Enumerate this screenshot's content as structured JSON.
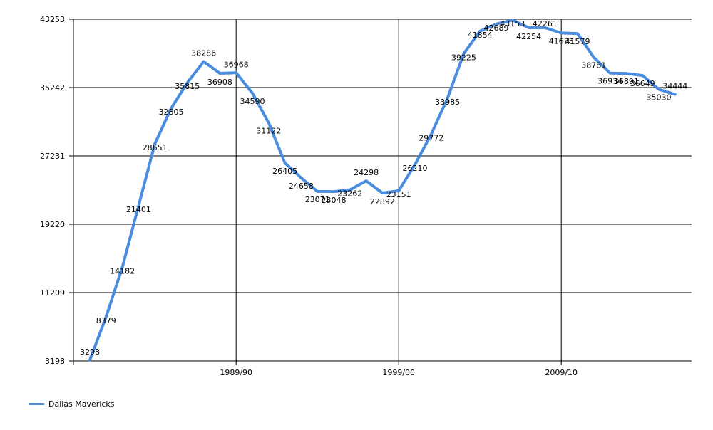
{
  "chart_data": {
    "type": "line",
    "title": "",
    "xlabel": "",
    "ylabel": "",
    "ylim": [
      3198,
      43253
    ],
    "y_ticks": [
      "43253",
      "35242",
      "27231",
      "19220",
      "11209",
      "3198"
    ],
    "x_tick_labels": [
      {
        "index": 9,
        "label": "1989/90"
      },
      {
        "index": 19,
        "label": "1999/00"
      },
      {
        "index": 29,
        "label": "2009/10"
      }
    ],
    "grid": true,
    "legend_position": "bottom-left",
    "series": [
      {
        "name": "Dallas Mavericks",
        "color": "#4a8de0",
        "values": [
          3298,
          8379,
          14182,
          21401,
          28651,
          32805,
          35815,
          38286,
          36908,
          36968,
          34590,
          31122,
          26405,
          24658,
          23071,
          23048,
          23262,
          24298,
          22892,
          23151,
          26210,
          29772,
          33985,
          39225,
          41854,
          42689,
          43153,
          42254,
          42261,
          41635,
          41579,
          38781,
          36934,
          36891,
          36649,
          35030,
          34444
        ]
      }
    ]
  }
}
